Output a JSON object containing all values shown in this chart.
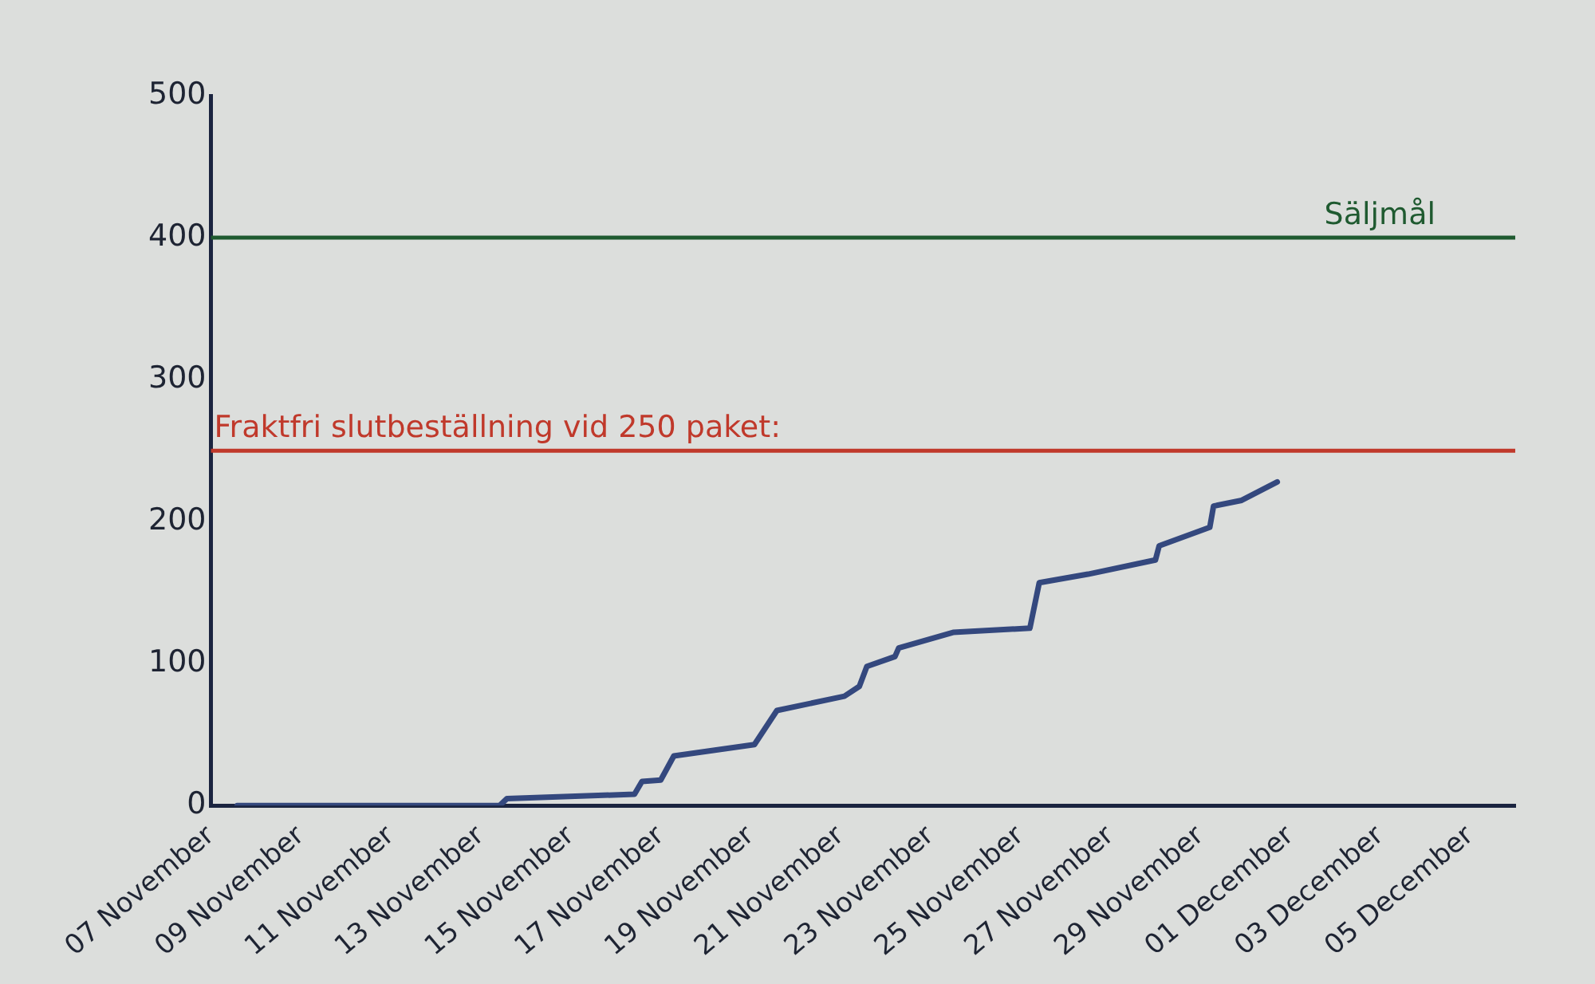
{
  "chart_data": {
    "type": "line",
    "x": [
      "--11-07T14:00",
      "--11-13T10:00",
      "--11-13T14:00",
      "--11-16T10:00",
      "--11-16T14:00",
      "--11-17T00:00",
      "--11-17T07:00",
      "--11-19T02:00",
      "--11-19T14:00",
      "--11-21T02:00",
      "--11-21T10:00",
      "--11-21T14:00",
      "--11-22T05:00",
      "--11-22T07:00",
      "--11-23T12:00",
      "--11-25T05:00",
      "--11-25T10:00",
      "--11-26T12:00",
      "--11-28T00:00",
      "--11-28T02:00",
      "--11-29T05:00",
      "--11-29T07:00",
      "--11-29T22:00",
      "--11-30T17:00"
    ],
    "series": [
      {
        "color": "#34487e",
        "values": [
          0,
          0,
          5,
          8,
          17,
          18,
          35,
          43,
          67,
          77,
          84,
          98,
          105,
          111,
          122,
          125,
          157,
          163,
          173,
          183,
          196,
          211,
          215,
          228
        ]
      }
    ],
    "xlim": [
      "--11-07",
      "--12-06"
    ],
    "xticks": [
      {
        "value": "--11-07",
        "label": "07 November"
      },
      {
        "value": "--11-09",
        "label": "09 November"
      },
      {
        "value": "--11-11",
        "label": "11 November"
      },
      {
        "value": "--11-13",
        "label": "13 November"
      },
      {
        "value": "--11-15",
        "label": "15 November"
      },
      {
        "value": "--11-17",
        "label": "17 November"
      },
      {
        "value": "--11-19",
        "label": "19 November"
      },
      {
        "value": "--11-21",
        "label": "21 November"
      },
      {
        "value": "--11-23",
        "label": "23 November"
      },
      {
        "value": "--11-25",
        "label": "25 November"
      },
      {
        "value": "--11-27",
        "label": "27 November"
      },
      {
        "value": "--11-29",
        "label": "29 November"
      },
      {
        "value": "--12-01",
        "label": "01 December"
      },
      {
        "value": "--12-03",
        "label": "03 December"
      },
      {
        "value": "--12-05",
        "label": "05 December"
      }
    ],
    "ylim": [
      0,
      500
    ],
    "yticks": [
      0,
      100,
      200,
      300,
      400,
      500
    ],
    "ref_lines": [
      {
        "axis": "y",
        "value": 400,
        "label": "Säljmål",
        "color": "#1f5a30"
      },
      {
        "axis": "y",
        "value": 250,
        "label": "Fraktfri slutbeställning vid 250 paket:",
        "color": "#c0392b"
      }
    ],
    "line_style": "solid",
    "grid": false,
    "legend": false
  }
}
